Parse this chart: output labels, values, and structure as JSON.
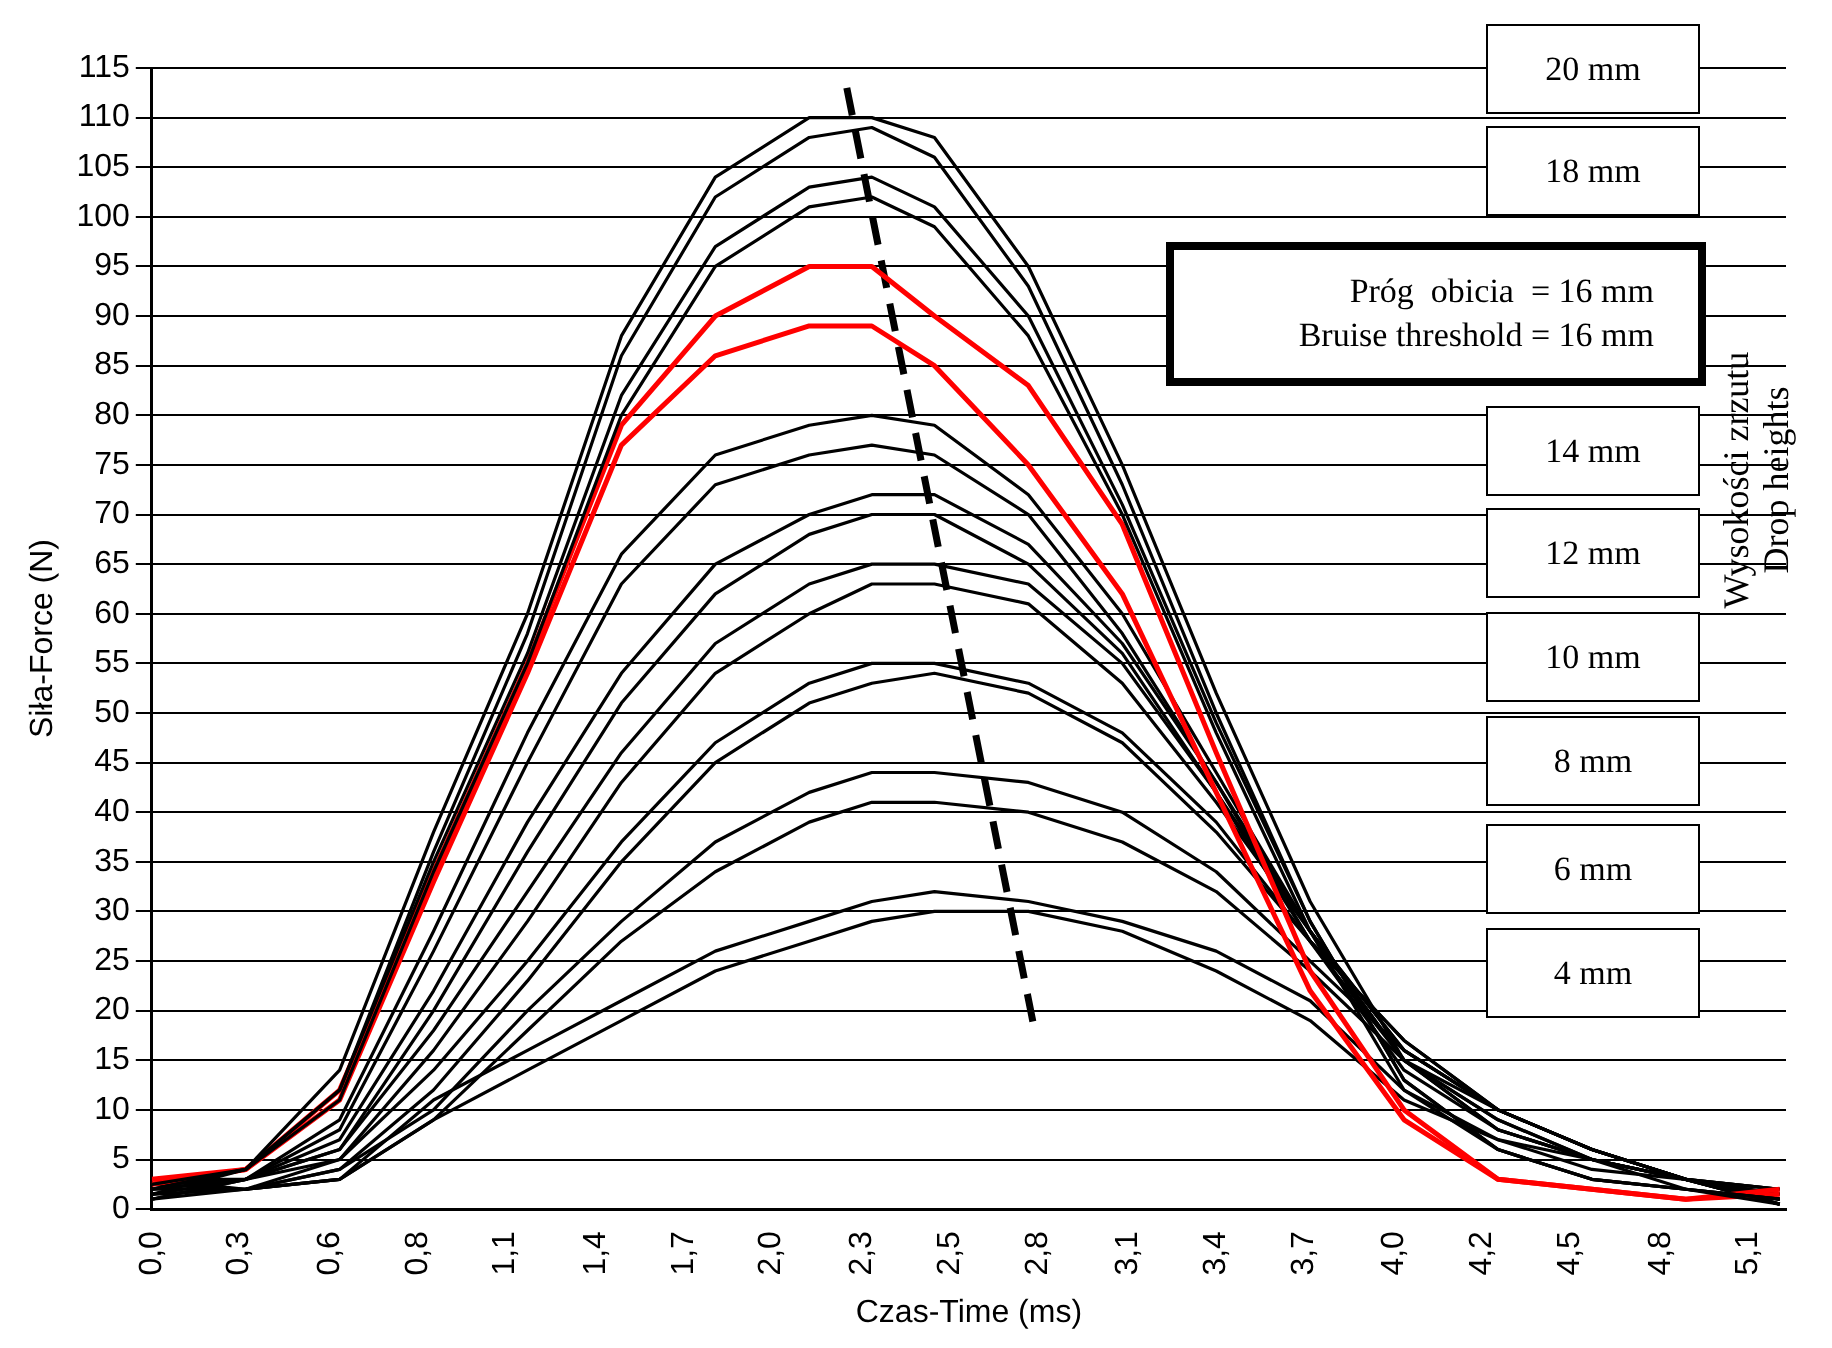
{
  "chart_data": {
    "type": "line",
    "xlabel": "Czas-Time (ms)",
    "ylabel": "Siła-Force (N)",
    "x": [
      0,
      0.3,
      0.6,
      0.9,
      1.2,
      1.5,
      1.8,
      2.1,
      2.3,
      2.5,
      2.8,
      3.1,
      3.4,
      3.7,
      4.0,
      4.3,
      4.6,
      4.9,
      5.2
    ],
    "xlim": [
      0,
      5.22
    ],
    "xticks": [
      {
        "value": 0,
        "label": "0,0"
      },
      {
        "value": 0.28,
        "label": "0,3"
      },
      {
        "value": 0.57,
        "label": "0,6"
      },
      {
        "value": 0.85,
        "label": "0,8"
      },
      {
        "value": 1.13,
        "label": "1,1"
      },
      {
        "value": 1.42,
        "label": "1,4"
      },
      {
        "value": 1.7,
        "label": "1,7"
      },
      {
        "value": 1.98,
        "label": "2,0"
      },
      {
        "value": 2.27,
        "label": "2,3"
      },
      {
        "value": 2.55,
        "label": "2,5"
      },
      {
        "value": 2.83,
        "label": "2,8"
      },
      {
        "value": 3.12,
        "label": "3,1"
      },
      {
        "value": 3.4,
        "label": "3,4"
      },
      {
        "value": 3.68,
        "label": "3,7"
      },
      {
        "value": 3.97,
        "label": "4,0"
      },
      {
        "value": 4.25,
        "label": "4,2"
      },
      {
        "value": 4.53,
        "label": "4,5"
      },
      {
        "value": 4.82,
        "label": "4,8"
      },
      {
        "value": 5.1,
        "label": "5,1"
      }
    ],
    "ylim": [
      0,
      115
    ],
    "yticks": [
      0,
      5,
      10,
      15,
      20,
      25,
      30,
      35,
      40,
      45,
      50,
      55,
      60,
      65,
      70,
      75,
      80,
      85,
      90,
      95,
      100,
      105,
      110,
      115
    ],
    "grid": "y",
    "legend": false,
    "marker": "none",
    "line_style": "solid",
    "series": [
      {
        "color": "#000000",
        "values": [
          2,
          4,
          14,
          38,
          60,
          88,
          104,
          110,
          110,
          108,
          95,
          75,
          52,
          31,
          15,
          8,
          5,
          2,
          1
        ]
      },
      {
        "color": "#000000",
        "values": [
          2.5,
          4,
          12,
          36,
          58,
          86,
          102,
          108,
          109,
          106,
          93,
          73,
          50,
          29,
          13,
          6,
          3,
          2,
          1
        ]
      },
      {
        "color": "#000000",
        "values": [
          1.5,
          4,
          12,
          35,
          56,
          82,
          97,
          103,
          104,
          101,
          90,
          71,
          49,
          29,
          13,
          6,
          3,
          2,
          1
        ]
      },
      {
        "color": "#000000",
        "values": [
          2,
          4,
          11,
          34,
          55,
          80,
          95,
          101,
          102,
          99,
          88,
          70,
          48,
          28,
          12,
          6,
          3,
          2,
          0.5
        ]
      },
      {
        "color": "#ff0000",
        "values": [
          3,
          4,
          12,
          34,
          55,
          79,
          90,
          95,
          95,
          90,
          83,
          69,
          46,
          24,
          10,
          3,
          2,
          1,
          2
        ]
      },
      {
        "color": "#ff0000",
        "values": [
          2.5,
          4,
          11,
          33,
          54,
          77,
          86,
          89,
          89,
          85,
          75,
          62,
          42,
          22,
          9,
          3,
          2,
          1,
          1.5
        ]
      },
      {
        "color": "#000000",
        "values": [
          2,
          3,
          9,
          28,
          48,
          66,
          76,
          79,
          80,
          79,
          72,
          60,
          44,
          28,
          15,
          8,
          5,
          3,
          1.5
        ]
      },
      {
        "color": "#000000",
        "values": [
          1.5,
          3,
          8,
          26,
          45,
          63,
          73,
          76,
          77,
          76,
          70,
          58,
          43,
          27,
          14,
          8,
          5,
          3,
          0.5
        ]
      },
      {
        "color": "#000000",
        "values": [
          1,
          3,
          7,
          22,
          39,
          54,
          65,
          70,
          72,
          72,
          67,
          57,
          43,
          28,
          15,
          9,
          5,
          3,
          1
        ]
      },
      {
        "color": "#000000",
        "values": [
          2.5,
          3,
          6,
          20,
          36,
          51,
          62,
          68,
          70,
          70,
          65,
          56,
          42,
          27,
          15,
          9,
          5,
          3,
          0.5
        ]
      },
      {
        "color": "#000000",
        "values": [
          3,
          3,
          6,
          18,
          32,
          46,
          57,
          63,
          65,
          65,
          63,
          55,
          42,
          28,
          16,
          10,
          6,
          3,
          1
        ]
      },
      {
        "color": "#000000",
        "values": [
          1,
          3,
          5,
          16,
          29,
          43,
          54,
          60,
          63,
          63,
          61,
          53,
          41,
          28,
          16,
          10,
          6,
          3,
          0.5
        ]
      },
      {
        "color": "#000000",
        "values": [
          2,
          2,
          5,
          14,
          25,
          37,
          47,
          53,
          55,
          55,
          53,
          48,
          39,
          27,
          17,
          10,
          6,
          3,
          2
        ]
      },
      {
        "color": "#000000",
        "values": [
          1.5,
          2,
          4,
          12,
          23,
          35,
          45,
          51,
          53,
          54,
          52,
          47,
          38,
          27,
          17,
          10,
          6,
          3,
          1.5
        ]
      },
      {
        "color": "#000000",
        "values": [
          3,
          2,
          4,
          10,
          20,
          29,
          37,
          42,
          44,
          44,
          43,
          40,
          34,
          25,
          16,
          10,
          6,
          3,
          0.5
        ]
      },
      {
        "color": "#000000",
        "values": [
          1,
          2,
          3,
          9,
          18,
          27,
          34,
          39,
          41,
          41,
          40,
          37,
          32,
          24,
          15,
          10,
          6,
          3,
          1.5
        ]
      },
      {
        "color": "#000000",
        "values": [
          2.5,
          2,
          3,
          11,
          16,
          21,
          26,
          29,
          31,
          32,
          31,
          29,
          26,
          21,
          12,
          7,
          5,
          3,
          2
        ]
      },
      {
        "color": "#000000",
        "values": [
          1.5,
          2,
          3,
          9,
          14,
          19,
          24,
          27,
          29,
          30,
          30,
          28,
          24,
          19,
          11,
          7,
          4,
          3,
          2
        ]
      },
      {
        "type": "line",
        "line_style": "dashed",
        "color": "#000000",
        "x": [
          2.22,
          2.82
        ],
        "values": [
          113,
          18
        ]
      }
    ],
    "annotations": [
      "20 mm",
      "18 mm",
      "Próg  obicia  = 16 mm",
      "Bruise threshold = 16 mm",
      "14 mm",
      "12 mm",
      "10 mm",
      "8 mm",
      "6 mm",
      "4 mm",
      "Wysokości zrzutu",
      "Drop heights"
    ]
  }
}
